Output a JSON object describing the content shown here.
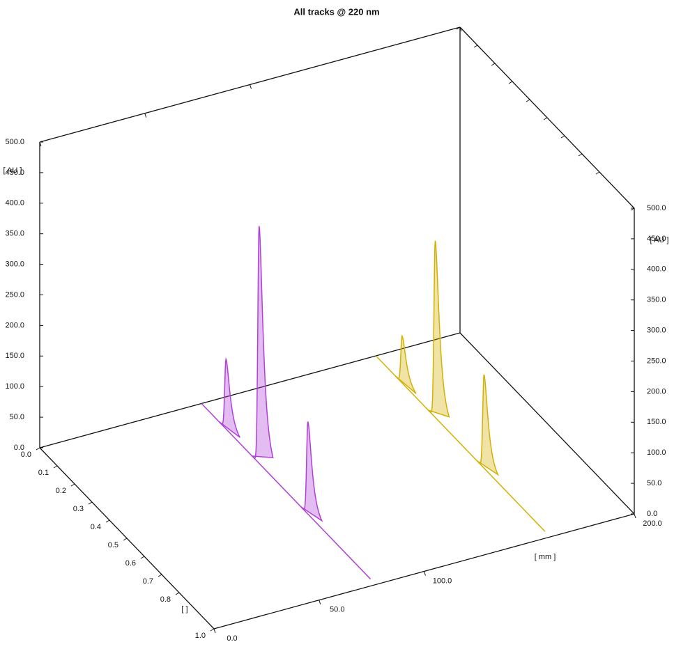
{
  "chart_data": {
    "type": "chromatogram3d",
    "title": "All tracks @ 220 nm",
    "zlabel": "[ AU ]",
    "ylabel": "[ ]",
    "xlabel": "[ mm ]",
    "zlim": [
      0,
      500
    ],
    "zticks": [
      {
        "value": 0,
        "label": "0.0"
      },
      {
        "value": 50,
        "label": "50.0"
      },
      {
        "value": 100,
        "label": "100.0"
      },
      {
        "value": 150,
        "label": "150.0"
      },
      {
        "value": 200,
        "label": "200.0"
      },
      {
        "value": 250,
        "label": "250.0"
      },
      {
        "value": 300,
        "label": "300.0"
      },
      {
        "value": 350,
        "label": "350.0"
      },
      {
        "value": 400,
        "label": "400.0"
      },
      {
        "value": 450,
        "label": "450.0"
      },
      {
        "value": 500,
        "label": "500.0"
      }
    ],
    "ylim": [
      0,
      1
    ],
    "yticks": [
      {
        "value": 0,
        "label": "0.0"
      },
      0.1,
      0.2,
      0.3,
      0.4,
      0.5,
      0.6,
      0.7,
      0.8,
      {
        "value": 1,
        "label": "1.0"
      }
    ],
    "xlim": [
      0,
      200
    ],
    "xticks": [
      {
        "value": 0,
        "label": "0.0"
      },
      {
        "value": 50,
        "label": "50.0"
      },
      {
        "value": 100,
        "label": "100.0"
      },
      {
        "value": 200,
        "label": "200.0"
      }
    ],
    "series": [
      {
        "color": "#b040d8",
        "track": 77,
        "rf": [
          0.14,
          0.33,
          0.61
        ],
        "values": [
          114,
          388,
          151
        ]
      },
      {
        "color": "#d4b000",
        "track": 160,
        "rf": [
          0.15,
          0.34,
          0.62
        ],
        "values": [
          77,
          289,
          153
        ]
      }
    ]
  }
}
